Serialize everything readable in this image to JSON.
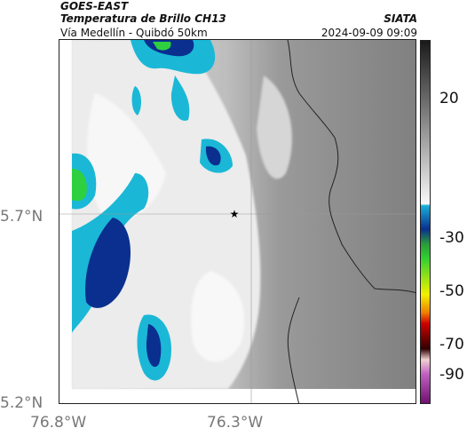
{
  "header": {
    "source": "GOES-EAST",
    "product": "Temperatura de Brillo CH13",
    "region": "Vía Medellín - Quibdó 50km",
    "credit": "SIATA",
    "timestamp": "2024-09-09 09:09"
  },
  "map": {
    "lat_labels": [
      "5.7°N",
      "5.2°N"
    ],
    "lon_labels": [
      "76.8°W",
      "76.3°W"
    ],
    "marker": "star"
  },
  "colorbar": {
    "ticks": [
      "20",
      "-30",
      "-50",
      "-70",
      "-90"
    ]
  },
  "colors": {
    "cold_blue": "#1060b0",
    "deep_blue": "#0a2f8f",
    "cyan": "#1ab8d6",
    "green": "#2ed040",
    "land_gray": "#8a8a8a",
    "cloud_white": "#f2f2f2"
  }
}
